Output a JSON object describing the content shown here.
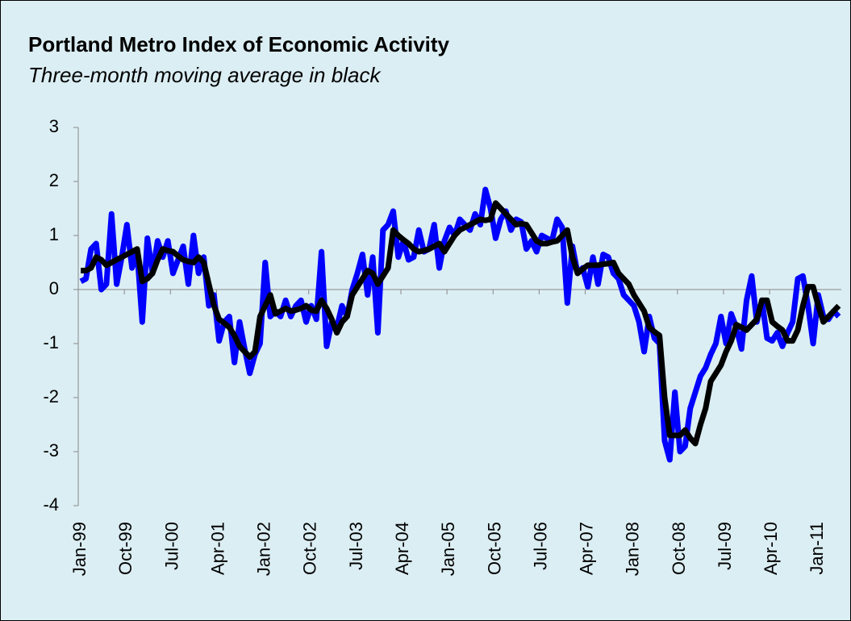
{
  "chart_data": {
    "type": "line",
    "title": "Portland Metro Index of Economic Activity",
    "subtitle": "Three-month moving average in black",
    "categories": [
      "Jan-99",
      null,
      null,
      null,
      null,
      null,
      null,
      null,
      null,
      "Oct-99",
      null,
      null,
      null,
      null,
      null,
      null,
      null,
      null,
      "Jul-00",
      null,
      null,
      null,
      null,
      null,
      null,
      null,
      null,
      "Apr-01",
      null,
      null,
      null,
      null,
      null,
      null,
      null,
      null,
      "Jan-02",
      null,
      null,
      null,
      null,
      null,
      null,
      null,
      null,
      "Oct-02",
      null,
      null,
      null,
      null,
      null,
      null,
      null,
      null,
      "Jul-03",
      null,
      null,
      null,
      null,
      null,
      null,
      null,
      null,
      "Apr-04",
      null,
      null,
      null,
      null,
      null,
      null,
      null,
      null,
      "Jan-05",
      null,
      null,
      null,
      null,
      null,
      null,
      null,
      null,
      "Oct-05",
      null,
      null,
      null,
      null,
      null,
      null,
      null,
      null,
      "Jul-06",
      null,
      null,
      null,
      null,
      null,
      null,
      null,
      null,
      "Apr-07",
      null,
      null,
      null,
      null,
      null,
      null,
      null,
      null,
      "Jan-08",
      null,
      null,
      null,
      null,
      null,
      null,
      null,
      null,
      "Oct-08",
      null,
      null,
      null,
      null,
      null,
      null,
      null,
      null,
      "Jul-09",
      null,
      null,
      null,
      null,
      null,
      null,
      null,
      null,
      "Apr-10",
      null,
      null,
      null,
      null,
      null,
      null,
      null,
      null,
      "Jan-11",
      null,
      null,
      null,
      null
    ],
    "series": [
      {
        "color": "#0000ff",
        "values": [
          0.15,
          0.2,
          0.75,
          0.85,
          0.0,
          0.1,
          1.4,
          0.1,
          0.6,
          1.2,
          0.4,
          0.7,
          -0.6,
          0.95,
          0.3,
          0.9,
          0.6,
          0.9,
          0.3,
          0.55,
          0.8,
          0.1,
          1.0,
          0.3,
          0.6,
          -0.3,
          -0.1,
          -0.95,
          -0.6,
          -0.5,
          -1.35,
          -0.6,
          -1.1,
          -1.55,
          -1.2,
          -1.0,
          0.5,
          -0.5,
          -0.4,
          -0.5,
          -0.2,
          -0.5,
          -0.3,
          -0.2,
          -0.6,
          -0.3,
          -0.55,
          0.7,
          -1.05,
          -0.6,
          -0.7,
          -0.3,
          -0.5,
          0.0,
          0.3,
          0.65,
          -0.1,
          0.6,
          -0.8,
          1.1,
          1.2,
          1.45,
          0.6,
          0.9,
          0.55,
          0.6,
          1.1,
          0.7,
          0.75,
          1.2,
          0.4,
          0.9,
          1.15,
          1.0,
          1.3,
          1.2,
          1.1,
          1.4,
          1.2,
          1.85,
          1.5,
          0.95,
          1.3,
          1.45,
          1.1,
          1.3,
          1.25,
          0.75,
          0.9,
          0.7,
          1.0,
          0.95,
          0.9,
          1.3,
          1.15,
          -0.25,
          0.8,
          0.3,
          0.4,
          0.05,
          0.6,
          0.1,
          0.65,
          0.6,
          0.3,
          0.2,
          -0.1,
          -0.2,
          -0.3,
          -0.6,
          -1.15,
          -0.5,
          -0.9,
          -1.0,
          -2.8,
          -3.15,
          -1.9,
          -3.0,
          -2.9,
          -2.2,
          -1.9,
          -1.6,
          -1.45,
          -1.2,
          -1.0,
          -0.5,
          -1.0,
          -0.45,
          -0.7,
          -1.1,
          -0.2,
          0.25,
          -0.6,
          -0.2,
          -0.9,
          -0.95,
          -0.8,
          -1.05,
          -0.8,
          -0.6,
          0.2,
          0.25,
          -0.3,
          -1.0,
          -0.1,
          -0.5,
          -0.55,
          -0.4,
          -0.5
        ]
      },
      {
        "color": "#000000",
        "values": [
          0.35,
          0.35,
          0.4,
          0.6,
          0.55,
          0.45,
          0.5,
          0.55,
          0.6,
          0.65,
          0.7,
          0.75,
          0.15,
          0.2,
          0.3,
          0.55,
          0.75,
          0.72,
          0.7,
          0.62,
          0.55,
          0.52,
          0.5,
          0.6,
          0.5,
          0.1,
          -0.3,
          -0.55,
          -0.62,
          -0.7,
          -0.85,
          -1.05,
          -1.15,
          -1.25,
          -1.15,
          -0.5,
          -0.3,
          -0.1,
          -0.45,
          -0.4,
          -0.35,
          -0.4,
          -0.38,
          -0.35,
          -0.3,
          -0.38,
          -0.4,
          -0.2,
          -0.35,
          -0.55,
          -0.8,
          -0.6,
          -0.5,
          -0.1,
          0.05,
          0.2,
          0.35,
          0.3,
          0.1,
          0.25,
          0.4,
          1.1,
          1.0,
          0.92,
          0.85,
          0.75,
          0.7,
          0.72,
          0.75,
          0.8,
          0.85,
          0.7,
          0.85,
          1.0,
          1.1,
          1.15,
          1.2,
          1.25,
          1.3,
          1.28,
          1.3,
          1.6,
          1.5,
          1.4,
          1.3,
          1.2,
          1.22,
          1.2,
          1.05,
          0.9,
          0.85,
          0.85,
          0.88,
          0.9,
          1.0,
          1.1,
          0.6,
          0.3,
          0.38,
          0.45,
          0.45,
          0.45,
          0.47,
          0.48,
          0.5,
          0.3,
          0.2,
          0.1,
          -0.1,
          -0.25,
          -0.4,
          -0.7,
          -0.78,
          -0.85,
          -2.0,
          -2.7,
          -2.7,
          -2.7,
          -2.6,
          -2.75,
          -2.85,
          -2.5,
          -2.2,
          -1.7,
          -1.55,
          -1.4,
          -1.15,
          -0.95,
          -0.65,
          -0.7,
          -0.75,
          -0.65,
          -0.55,
          -0.2,
          -0.2,
          -0.6,
          -0.68,
          -0.75,
          -0.95,
          -0.95,
          -0.75,
          -0.3,
          0.05,
          0.05,
          -0.3,
          -0.6,
          -0.5,
          -0.4,
          -0.3
        ]
      }
    ],
    "ylim": [
      -4,
      3
    ],
    "yticks": [
      -4,
      -3,
      -2,
      -1,
      0,
      1,
      2,
      3
    ],
    "grid": false
  }
}
